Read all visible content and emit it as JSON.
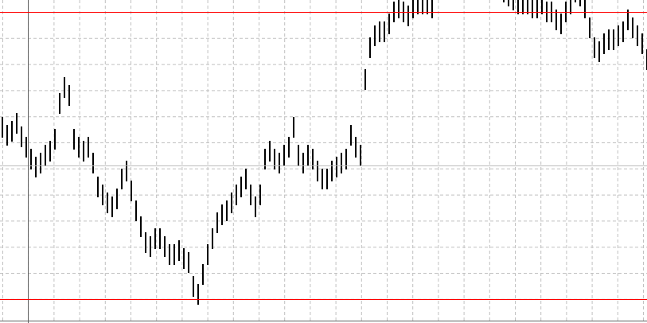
{
  "chart_data": {
    "type": "bar",
    "style": "high-low bars (OHLC-style)",
    "ylim": [
      0,
      406
    ],
    "grid": true,
    "colors": {
      "bars": "#000000",
      "grid": "#c0c0c0",
      "level_lines": "#ff0000",
      "separator": "#606060",
      "background": "#ffffff"
    },
    "levels": [
      391,
      30
    ],
    "mid_line": 198,
    "vertical_marker_index": 5,
    "high": [
      259,
      249,
      254,
      264,
      247,
      234,
      219,
      209,
      214,
      224,
      229,
      244,
      289,
      309,
      299,
      244,
      234,
      229,
      234,
      214,
      184,
      174,
      164,
      159,
      169,
      194,
      204,
      179,
      154,
      134,
      114,
      109,
      119,
      119,
      109,
      99,
      99,
      104,
      94,
      89,
      59,
      49,
      74,
      99,
      119,
      139,
      149,
      154,
      164,
      174,
      184,
      194,
      174,
      159,
      174,
      219,
      229,
      219,
      214,
      224,
      234,
      259,
      224,
      214,
      224,
      219,
      204,
      194,
      194,
      204,
      209,
      214,
      219,
      249,
      234,
      224,
      319,
      359,
      374,
      379,
      379,
      389,
      404,
      409,
      404,
      399,
      409,
      414,
      414,
      414,
      409,
      449,
      459,
      469,
      479,
      489,
      479,
      469,
      474,
      464,
      459,
      449,
      444,
      439,
      434,
      429,
      424,
      419,
      414,
      414,
      414,
      409,
      409,
      414,
      404,
      404,
      394,
      389,
      404,
      414,
      429,
      424,
      409,
      384,
      359,
      354,
      364,
      369,
      369,
      374,
      379,
      394,
      384,
      374,
      364,
      344
    ],
    "low": [
      233,
      223,
      228,
      238,
      221,
      208,
      193,
      183,
      188,
      198,
      203,
      218,
      263,
      283,
      273,
      218,
      208,
      203,
      208,
      188,
      158,
      148,
      138,
      133,
      143,
      168,
      178,
      153,
      128,
      108,
      88,
      83,
      93,
      93,
      83,
      73,
      73,
      78,
      68,
      63,
      33,
      23,
      48,
      73,
      93,
      113,
      123,
      128,
      138,
      148,
      158,
      168,
      148,
      133,
      148,
      193,
      203,
      193,
      188,
      198,
      208,
      233,
      198,
      188,
      198,
      193,
      178,
      168,
      168,
      178,
      183,
      188,
      193,
      223,
      208,
      198,
      293,
      333,
      348,
      353,
      353,
      363,
      378,
      383,
      378,
      373,
      383,
      388,
      388,
      388,
      383,
      423,
      433,
      443,
      453,
      463,
      453,
      443,
      448,
      438,
      433,
      423,
      418,
      413,
      408,
      403,
      398,
      393,
      388,
      388,
      388,
      383,
      383,
      388,
      378,
      378,
      368,
      363,
      378,
      388,
      403,
      398,
      383,
      358,
      333,
      328,
      338,
      343,
      343,
      348,
      353,
      368,
      358,
      348,
      338,
      318
    ]
  }
}
